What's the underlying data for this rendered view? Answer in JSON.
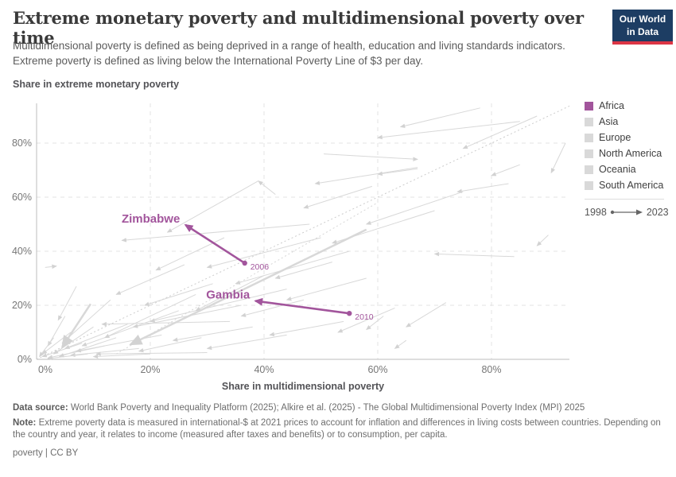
{
  "header": {
    "logo_line1": "Our World",
    "logo_line2": "in Data"
  },
  "chart_data": {
    "type": "scatter",
    "title": "Extreme monetary poverty and multidimensional poverty over time",
    "subtitle": "Multidimensional poverty is defined as being deprived in a range of health, education and living standards indicators. Extreme poverty is defined as living below the International Poverty Line of $3 per day.",
    "xlabel": "Share in multidimensional poverty",
    "ylabel": "Share in extreme monetary poverty",
    "xlim": [
      0,
      94
    ],
    "ylim": [
      0,
      94
    ],
    "grid": true,
    "legend_position": "right",
    "time_range": {
      "start": "1998",
      "end": "2023"
    },
    "highlight_color": "#a2559c",
    "background_arrow_color": "#d8d8d8",
    "x_ticks": [
      {
        "v": 0,
        "label": "0%"
      },
      {
        "v": 20,
        "label": "20%"
      },
      {
        "v": 40,
        "label": "40%"
      },
      {
        "v": 60,
        "label": "60%"
      },
      {
        "v": 80,
        "label": "80%"
      }
    ],
    "y_ticks": [
      {
        "v": 0,
        "label": "0%"
      },
      {
        "v": 20,
        "label": "20%"
      },
      {
        "v": 40,
        "label": "40%"
      },
      {
        "v": 60,
        "label": "60%"
      },
      {
        "v": 80,
        "label": "80%"
      }
    ],
    "highlighted_series": [
      {
        "name": "Zimbabwe",
        "region": "Africa",
        "color": "#a2559c",
        "start_year_label": "2006",
        "start": {
          "x": 36.6,
          "y": 35.6
        },
        "end": {
          "x": 26.2,
          "y": 49.7
        }
      },
      {
        "name": "Gambia",
        "region": "Africa",
        "color": "#a2559c",
        "start_year_label": "2010",
        "start": {
          "x": 55.0,
          "y": 17.0
        },
        "end": {
          "x": 38.5,
          "y": 21.6
        }
      }
    ],
    "identity_line": {
      "style": "dotted",
      "from": [
        0,
        0
      ],
      "to": [
        94,
        94
      ]
    },
    "extra_dotted_line": {
      "style": "dotted",
      "from": [
        14,
        2
      ],
      "to": [
        60,
        58
      ]
    },
    "background_arrows": [
      [
        8,
        6,
        1,
        1
      ],
      [
        12,
        5,
        2,
        0.5
      ],
      [
        6,
        10,
        1,
        2
      ],
      [
        10,
        12,
        3,
        2
      ],
      [
        14,
        8,
        4,
        1
      ],
      [
        5,
        16,
        2,
        5
      ],
      [
        18,
        4,
        6,
        1.5
      ],
      [
        9,
        2,
        2,
        0.3
      ],
      [
        22,
        9,
        7,
        3
      ],
      [
        16,
        13,
        5,
        4
      ],
      [
        3,
        8,
        0.5,
        1
      ],
      [
        20,
        2,
        10,
        1
      ],
      [
        30,
        2.5,
        10.5,
        2
      ],
      [
        34,
        14,
        11.5,
        13
      ],
      [
        7,
        27,
        3.8,
        14.5
      ],
      [
        13,
        22,
        4.5,
        6
      ],
      [
        25,
        18,
        8,
        5
      ],
      [
        28,
        24,
        12,
        8
      ],
      [
        36,
        20,
        17,
        12
      ],
      [
        44,
        26,
        20,
        14
      ],
      [
        40,
        31,
        28,
        18
      ],
      [
        48,
        50,
        15,
        44
      ],
      [
        39,
        66,
        23,
        47
      ],
      [
        42,
        61,
        39,
        66
      ],
      [
        50,
        45,
        30,
        34
      ],
      [
        55,
        40,
        35,
        28
      ],
      [
        63,
        19,
        53,
        10
      ],
      [
        61,
        16,
        58,
        11
      ],
      [
        65,
        7,
        63,
        4
      ],
      [
        72,
        21,
        65,
        12
      ],
      [
        84,
        38,
        70,
        39
      ],
      [
        90,
        46,
        88,
        42
      ],
      [
        85,
        88,
        60,
        82
      ],
      [
        78,
        93,
        64,
        86
      ],
      [
        93,
        80,
        90.5,
        69
      ],
      [
        85,
        72,
        80,
        68
      ],
      [
        83,
        65,
        74,
        62
      ],
      [
        67,
        71,
        49,
        65
      ],
      [
        67,
        70.5,
        60,
        68.5
      ],
      [
        50.5,
        76,
        67,
        74
      ],
      [
        52,
        36,
        42,
        30
      ],
      [
        47,
        22,
        36,
        16
      ],
      [
        58,
        30,
        44,
        22
      ],
      [
        38,
        12,
        24,
        7
      ],
      [
        29,
        8,
        18,
        3
      ],
      [
        70,
        55,
        52,
        43
      ],
      [
        75,
        62,
        58,
        50
      ],
      [
        88,
        90,
        75,
        78
      ],
      [
        33,
        45,
        21,
        33
      ],
      [
        26,
        35,
        14,
        24
      ],
      [
        1.5,
        34,
        3.5,
        34.5
      ],
      [
        44,
        9,
        30,
        4
      ],
      [
        54,
        14,
        41,
        9
      ],
      [
        31,
        28,
        19,
        20
      ],
      [
        59,
        64,
        47,
        56
      ],
      [
        58,
        48,
        16.5,
        5.5,
        2.5
      ],
      [
        9.5,
        20.5,
        4.5,
        4.5,
        2.5
      ]
    ]
  },
  "legend": {
    "items": [
      {
        "label": "Africa",
        "color": "#a2559c"
      },
      {
        "label": "Asia",
        "color": "#d9d9d9"
      },
      {
        "label": "Europe",
        "color": "#d9d9d9"
      },
      {
        "label": "North America",
        "color": "#d9d9d9"
      },
      {
        "label": "Oceania",
        "color": "#d9d9d9"
      },
      {
        "label": "South America",
        "color": "#d9d9d9"
      }
    ]
  },
  "footer": {
    "datasource_label": "Data source:",
    "datasource_text": " World Bank Poverty and Inequality Platform (2025); Alkire et al. (2025) - The Global Multidimensional Poverty Index (MPI) 2025",
    "note_label": "Note:",
    "note_text": " Extreme poverty data is measured in international-$ at 2021 prices to account for inflation and differences in living costs between countries. Depending on the country and year, it relates to income (measured after taxes and benefits) or to consumption, per capita.",
    "license": "poverty | CC BY"
  }
}
